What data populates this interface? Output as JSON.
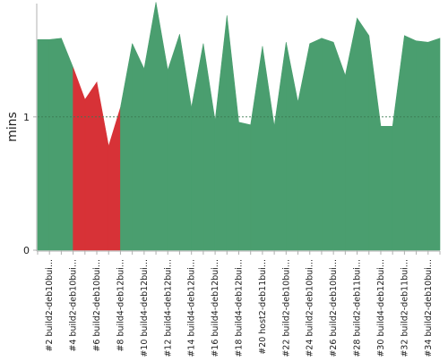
{
  "chart_data": {
    "type": "area",
    "ylabel": "mins",
    "xlabel": "",
    "title": "",
    "ylim": [
      0,
      1.85
    ],
    "y_ticks": [
      0,
      1
    ],
    "y_tick_labels": [
      "0",
      "1"
    ],
    "reference_line": 1,
    "grid": false,
    "x_tick_labels": [
      "#2 build2-deb10bui...",
      "#4 build2-deb10bui...",
      "#6 build2-deb10bui...",
      "#8 build4-deb12bui...",
      "#10 build4-deb12bui...",
      "#12 build4-deb12bui...",
      "#14 build4-deb12bui...",
      "#16 build4-deb12bui...",
      "#18 build4-deb12bui...",
      "#20 host2-deb11bui...",
      "#22 build2-deb10bui...",
      "#24 build2-deb10bui...",
      "#26 build2-deb10bui...",
      "#28 build2-deb11bui...",
      "#30 build4-deb12bui...",
      "#32 build2-deb11bui...",
      "#34 build2-deb10bui..."
    ],
    "x_tick_builds": [
      2,
      4,
      6,
      8,
      10,
      12,
      14,
      16,
      18,
      20,
      22,
      24,
      26,
      28,
      30,
      32,
      34
    ],
    "builds": [
      1,
      2,
      3,
      4,
      5,
      6,
      7,
      8,
      9,
      10,
      11,
      12,
      13,
      14,
      15,
      16,
      17,
      18,
      19,
      20,
      21,
      22,
      23,
      24,
      25,
      26,
      27,
      28,
      29,
      30,
      31,
      32,
      33,
      34,
      35
    ],
    "values": [
      1.58,
      1.58,
      1.59,
      1.37,
      1.13,
      1.26,
      0.78,
      1.07,
      1.55,
      1.36,
      1.86,
      1.35,
      1.62,
      1.07,
      1.55,
      0.97,
      1.76,
      0.96,
      0.94,
      1.53,
      0.93,
      1.56,
      1.11,
      1.55,
      1.59,
      1.56,
      1.31,
      1.74,
      1.61,
      0.93,
      0.93,
      1.61,
      1.57,
      1.56,
      1.59
    ],
    "status": [
      "success",
      "success",
      "success",
      "failure",
      "failure",
      "failure",
      "failure",
      "success",
      "success",
      "success",
      "success",
      "success",
      "success",
      "success",
      "success",
      "success",
      "success",
      "success",
      "success",
      "success",
      "success",
      "success",
      "success",
      "success",
      "success",
      "success",
      "success",
      "success",
      "success",
      "success",
      "success",
      "success",
      "success",
      "success",
      "success"
    ],
    "colors": {
      "success": "#4a9e6f",
      "failure": "#d73237",
      "axis": "#b0b0b0",
      "reference": "#3a7a52",
      "text": "#222222"
    }
  }
}
